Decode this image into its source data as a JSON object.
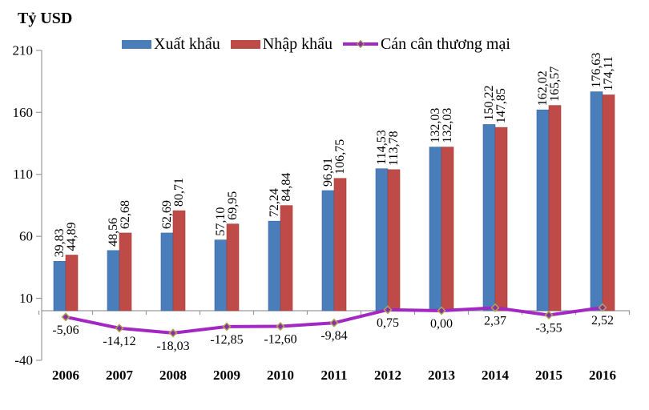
{
  "axis_title": "Tỷ USD",
  "legend": {
    "items": [
      {
        "label": "Xuất khẩu",
        "marker": "rect",
        "color": "#4A7EBB"
      },
      {
        "label": "Nhập khẩu",
        "marker": "rect",
        "color": "#BE4B48"
      },
      {
        "label": "Cán cân thương mại",
        "marker": "line-diamond",
        "color": "#A227C3",
        "marker_fill": "#8F2DA8",
        "marker_stroke": "#A9A84F"
      }
    ]
  },
  "chart_data": {
    "type": "bar",
    "title": "",
    "ylabel": "Tỷ USD",
    "xlabel": "",
    "grid": false,
    "legend_position": "top",
    "ylim": [
      -40,
      210
    ],
    "yticks": [
      210,
      160,
      110,
      60,
      10,
      -40
    ],
    "categories": [
      "2006",
      "2007",
      "2008",
      "2009",
      "2010",
      "2011",
      "2012",
      "2013",
      "2014",
      "2015",
      "2016"
    ],
    "series": [
      {
        "name": "Xuất khẩu",
        "type": "bar",
        "color": "#4A7EBB",
        "edge_color": "#3B67A0",
        "values": [
          39.83,
          48.56,
          62.69,
          57.1,
          72.24,
          96.91,
          114.53,
          132.03,
          150.22,
          162.02,
          176.63
        ],
        "labels": [
          "39,83",
          "48,56",
          "62,69",
          "57,10",
          "72,24",
          "96,91",
          "114,53",
          "132,03",
          "150,22",
          "162,02",
          "176,63"
        ]
      },
      {
        "name": "Nhập khẩu",
        "type": "bar",
        "color": "#BE4B48",
        "edge_color": "#9E3D3B",
        "values": [
          44.89,
          62.68,
          80.71,
          69.95,
          84.84,
          106.75,
          113.78,
          132.03,
          147.85,
          165.57,
          174.11
        ],
        "labels": [
          "44,89",
          "62,68",
          "80,71",
          "69,95",
          "84,84",
          "106,75",
          "113,78",
          "132,03",
          "147,85",
          "165,57",
          "174,11"
        ]
      },
      {
        "name": "Cán cân thương mại",
        "type": "line",
        "color": "#A227C3",
        "marker": "diamond",
        "marker_fill": "#8F2DA8",
        "marker_stroke": "#A9A84F",
        "values": [
          -5.06,
          -14.12,
          -18.03,
          -12.85,
          -12.6,
          -9.84,
          0.75,
          0.0,
          2.37,
          -3.55,
          2.52
        ],
        "labels": [
          "-5,06",
          "-14,12",
          "-18,03",
          "-12,85",
          "-12,60",
          "-9,84",
          "0,75",
          "0,00",
          "2,37",
          "-3,55",
          "2,52"
        ]
      }
    ]
  },
  "colors": {
    "axis_line": "#9a9a9a",
    "text": "#000000",
    "background": "#ffffff"
  }
}
